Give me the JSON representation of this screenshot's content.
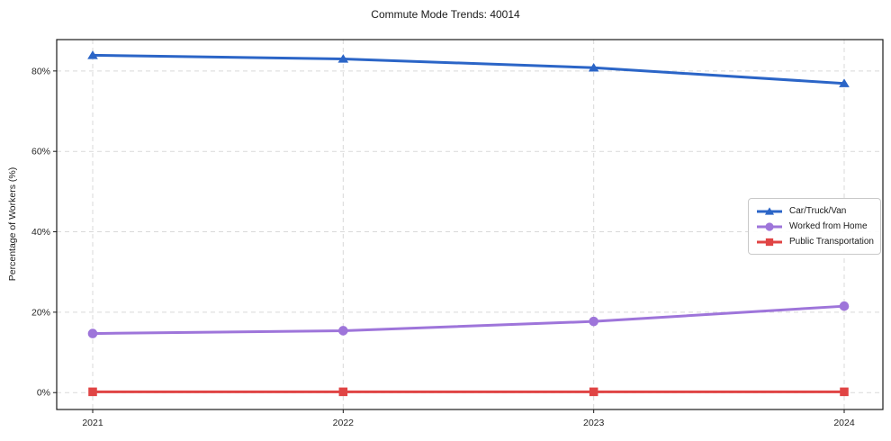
{
  "page": {
    "title": "Commute Mode Trends: 40014"
  },
  "chart_data": {
    "type": "line",
    "title": "Commute Mode Trends: 40014",
    "xlabel": "",
    "ylabel": "Percentage of Workers (%)",
    "categories": [
      "2021",
      "2022",
      "2023",
      "2024"
    ],
    "y_ticks": [
      0,
      20,
      40,
      60,
      80
    ],
    "y_tick_labels": [
      "0%",
      "20%",
      "40%",
      "60%",
      "80%"
    ],
    "ylim": [
      -4.2,
      87.8
    ],
    "grid": true,
    "grid_style": "dashed",
    "legend_position": "center-right",
    "series": [
      {
        "name": "Car/Truck/Van",
        "marker": "triangle",
        "color": "#2b65c7",
        "values": [
          83.9,
          83.0,
          80.8,
          76.9
        ]
      },
      {
        "name": "Worked from Home",
        "marker": "circle",
        "color": "#9e75da",
        "values": [
          14.7,
          15.4,
          17.7,
          21.5
        ]
      },
      {
        "name": "Public Transportation",
        "marker": "square",
        "color": "#e04444",
        "values": [
          0.2,
          0.2,
          0.2,
          0.2
        ]
      }
    ]
  },
  "colors": {
    "frame": "#1a1a1a",
    "grid": "#d9d9d9",
    "tick_text": "#262626",
    "background": "#ffffff",
    "legend_border": "#c9c9c9"
  }
}
